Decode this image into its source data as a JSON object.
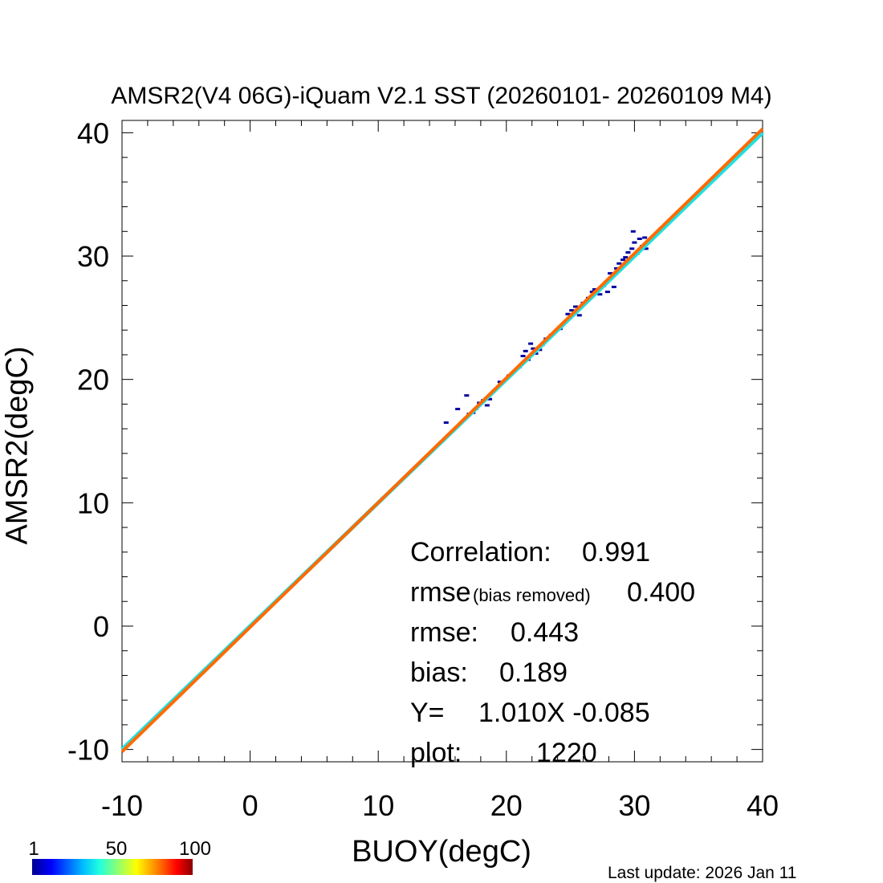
{
  "chart_data": {
    "type": "scatter",
    "title": "AMSR2(V4 06G)-iQuam V2.1 SST (20260101- 20260109 M4)",
    "xlabel": "BUOY(degC)",
    "ylabel": "AMSR2(degC)",
    "xlim": [
      -10,
      40
    ],
    "ylim": [
      -11,
      41
    ],
    "x_ticks": [
      "-10",
      "0",
      "10",
      "20",
      "30",
      "40"
    ],
    "y_ticks": [
      "-10",
      "0",
      "10",
      "20",
      "30",
      "40"
    ],
    "grid": false,
    "series": [
      {
        "points": [
          [
            15.3,
            16.5
          ],
          [
            16.2,
            17.6
          ],
          [
            16.9,
            18.7
          ],
          [
            17.1,
            17.2
          ],
          [
            17.4,
            17.3
          ],
          [
            17.6,
            17.6
          ],
          [
            17.9,
            18.1
          ],
          [
            18.2,
            18.3
          ],
          [
            18.5,
            17.9
          ],
          [
            18.7,
            18.4
          ],
          [
            21.0,
            21.0
          ],
          [
            21.3,
            21.9
          ],
          [
            21.5,
            22.3
          ],
          [
            21.7,
            21.6
          ],
          [
            21.9,
            22.9
          ],
          [
            22.1,
            22.5
          ],
          [
            22.3,
            22.1
          ],
          [
            22.6,
            22.4
          ],
          [
            22.8,
            22.8
          ],
          [
            23.1,
            23.3
          ],
          [
            23.5,
            23.6
          ],
          [
            24.2,
            24.1
          ],
          [
            24.8,
            25.3
          ],
          [
            25.1,
            25.6
          ],
          [
            25.4,
            25.9
          ],
          [
            25.7,
            25.2
          ],
          [
            26.0,
            26.2
          ],
          [
            26.4,
            26.6
          ],
          [
            26.7,
            27.1
          ],
          [
            26.9,
            27.3
          ],
          [
            27.3,
            26.9
          ],
          [
            27.6,
            27.6
          ],
          [
            27.9,
            27.1
          ],
          [
            28.1,
            28.6
          ],
          [
            28.4,
            27.5
          ],
          [
            28.6,
            29.0
          ],
          [
            28.8,
            29.4
          ],
          [
            29.1,
            29.7
          ],
          [
            29.3,
            29.9
          ],
          [
            29.5,
            30.3
          ],
          [
            29.8,
            30.6
          ],
          [
            30.0,
            31.1
          ],
          [
            30.2,
            30.2
          ],
          [
            30.4,
            31.4
          ],
          [
            30.6,
            30.8
          ],
          [
            30.8,
            31.5
          ],
          [
            29.9,
            32.0
          ],
          [
            30.9,
            30.6
          ],
          [
            19.5,
            19.8
          ],
          [
            20.2,
            20.3
          ]
        ]
      }
    ],
    "lines": [
      {
        "slope": 1.0,
        "intercept": 0.0,
        "color": "#20e0e0"
      },
      {
        "slope": 1.01,
        "intercept": -0.085,
        "color": "#ff6a00"
      }
    ],
    "annotations": {
      "correlation_label": "Correlation:",
      "correlation_value": "0.991",
      "rmse_br_label": "rmse",
      "rmse_br_sub": "(bias removed)",
      "rmse_br_value": "0.400",
      "rmse_label": "rmse:",
      "rmse_value": "0.443",
      "bias_label": "bias:",
      "bias_value": "0.189",
      "fit_label": "Y=",
      "fit_value": "1.010X -0.085",
      "plot_label": "plot:",
      "plot_value": "1220"
    },
    "colorbar": {
      "ticks": [
        "1",
        "50",
        "100"
      ],
      "colors": [
        "#00008f",
        "#0000ff",
        "#00bfff",
        "#9fff60",
        "#ffff00",
        "#ff8000",
        "#ff0000",
        "#8b0000"
      ]
    },
    "point_color": "#0000a0"
  },
  "footer": {
    "last_update": "Last update: 2026 Jan 11"
  }
}
